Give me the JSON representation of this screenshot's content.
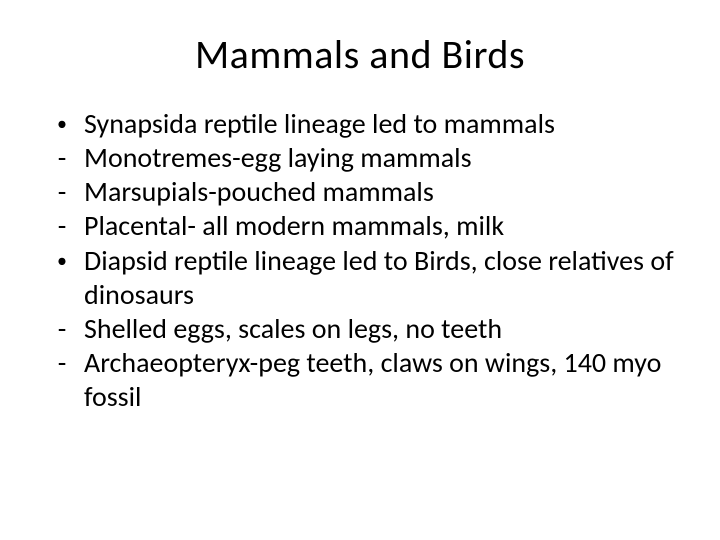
{
  "background_color": "#ffffff",
  "text_color": "#000000",
  "title_fontsize": 40,
  "body_fontsize": 28,
  "title": "Mammals and Birds",
  "items": [
    {
      "marker": "•",
      "text": "Synapsida reptile lineage led to mammals"
    },
    {
      "marker": "-",
      "text": "Monotremes-egg laying mammals"
    },
    {
      "marker": "-",
      "text": "Marsupials-pouched mammals"
    },
    {
      "marker": "-",
      "text": "Placental- all modern mammals, milk"
    },
    {
      "marker": "•",
      "text": "Diapsid reptile lineage led to Birds, close relatives of dinosaurs"
    },
    {
      "marker": "-",
      "text": "Shelled eggs, scales on legs, no teeth"
    },
    {
      "marker": "-",
      "text": "Archaeopteryx-peg teeth, claws on wings, 140 myo fossil"
    }
  ]
}
